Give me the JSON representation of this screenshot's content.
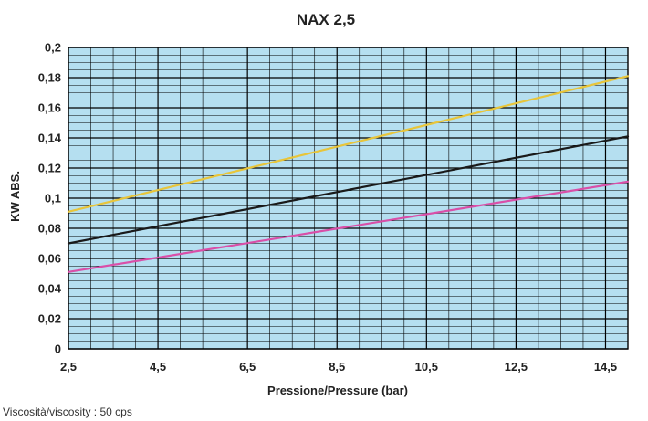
{
  "chart_data": {
    "type": "line",
    "title": "NAX 2,5",
    "xlabel": "Pressione/Pressure (bar)",
    "ylabel": "KW ABS.",
    "footnote": "Viscosità/viscosity : 50 cps",
    "xlim": [
      2.5,
      15
    ],
    "ylim": [
      0,
      0.2
    ],
    "x_ticks": [
      {
        "value": 2.5,
        "label": "2,5"
      },
      {
        "value": 4.5,
        "label": "4,5"
      },
      {
        "value": 6.5,
        "label": "6,5"
      },
      {
        "value": 8.5,
        "label": "8,5"
      },
      {
        "value": 10.5,
        "label": "10,5"
      },
      {
        "value": 12.5,
        "label": "12,5"
      },
      {
        "value": 14.5,
        "label": "14,5"
      }
    ],
    "y_ticks": [
      {
        "value": 0,
        "label": "0"
      },
      {
        "value": 0.02,
        "label": "0,02"
      },
      {
        "value": 0.04,
        "label": "0,04"
      },
      {
        "value": 0.06,
        "label": "0,06"
      },
      {
        "value": 0.08,
        "label": "0,08"
      },
      {
        "value": 0.1,
        "label": "0,1"
      },
      {
        "value": 0.12,
        "label": "0,12"
      },
      {
        "value": 0.14,
        "label": "0,14"
      },
      {
        "value": 0.16,
        "label": "0,16"
      },
      {
        "value": 0.18,
        "label": "0,18"
      },
      {
        "value": 0.2,
        "label": "0,2"
      }
    ],
    "grid": true,
    "minor_grid_x_step": 0.5,
    "minor_grid_y_step": 0.005,
    "background_color": "#b5dff0",
    "grid_color": "#000000",
    "series": [
      {
        "color": "#e8c53a",
        "x": [
          2.5,
          15
        ],
        "y": [
          0.091,
          0.181
        ]
      },
      {
        "color": "#1a1a1a",
        "x": [
          2.5,
          15
        ],
        "y": [
          0.07,
          0.141
        ]
      },
      {
        "color": "#d94fa8",
        "x": [
          2.5,
          15
        ],
        "y": [
          0.051,
          0.111
        ]
      }
    ]
  }
}
